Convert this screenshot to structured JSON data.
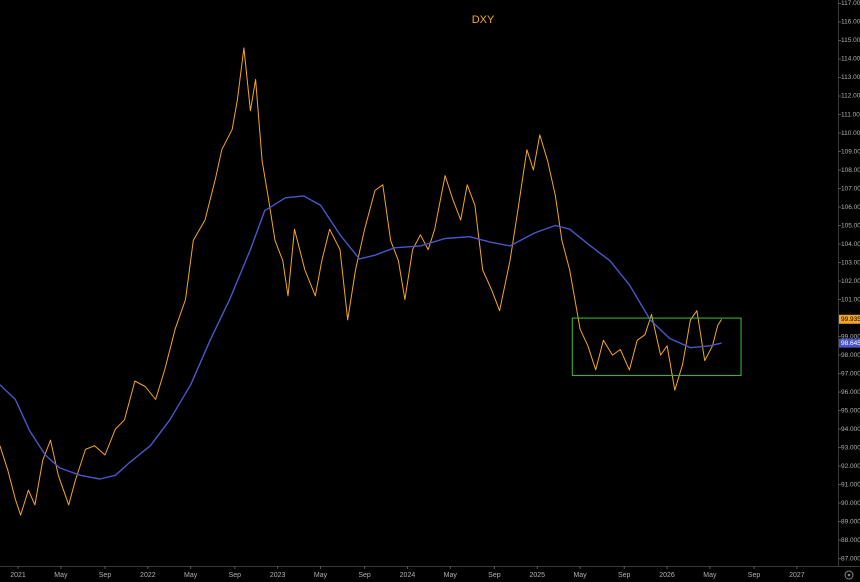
{
  "chart_data": {
    "type": "line",
    "title": "DXY",
    "xlim": [
      2020.861,
      2027.317
    ],
    "ylim": [
      86.6,
      117.19
    ],
    "xticks": [
      {
        "value": 2021,
        "label": "2021"
      },
      {
        "value": 2021.33,
        "label": "May"
      },
      {
        "value": 2021.67,
        "label": "Sep"
      },
      {
        "value": 2022,
        "label": "2022"
      },
      {
        "value": 2022.33,
        "label": "May"
      },
      {
        "value": 2022.67,
        "label": "Sep"
      },
      {
        "value": 2023,
        "label": "2023"
      },
      {
        "value": 2023.33,
        "label": "May"
      },
      {
        "value": 2023.67,
        "label": "Sep"
      },
      {
        "value": 2024,
        "label": "2024"
      },
      {
        "value": 2024.33,
        "label": "May"
      },
      {
        "value": 2024.67,
        "label": "Sep"
      },
      {
        "value": 2025,
        "label": "2025"
      },
      {
        "value": 2025.33,
        "label": "May"
      },
      {
        "value": 2025.67,
        "label": "Sep"
      },
      {
        "value": 2026,
        "label": "2026"
      },
      {
        "value": 2026.33,
        "label": "May"
      },
      {
        "value": 2026.67,
        "label": "Sep"
      },
      {
        "value": 2027,
        "label": "2027"
      }
    ],
    "yticks": [
      {
        "value": 87,
        "label": "87.000"
      },
      {
        "value": 88,
        "label": "88.000"
      },
      {
        "value": 89,
        "label": "89.000"
      },
      {
        "value": 90,
        "label": "90.000"
      },
      {
        "value": 91,
        "label": "91.000"
      },
      {
        "value": 92,
        "label": "92.000"
      },
      {
        "value": 93,
        "label": "93.000"
      },
      {
        "value": 94,
        "label": "94.000"
      },
      {
        "value": 95,
        "label": "95.000"
      },
      {
        "value": 96,
        "label": "96.000"
      },
      {
        "value": 97,
        "label": "97.000"
      },
      {
        "value": 98,
        "label": "98.000"
      },
      {
        "value": 99,
        "label": "99.000"
      },
      {
        "value": 101,
        "label": "101.000"
      },
      {
        "value": 102,
        "label": "102.000"
      },
      {
        "value": 103,
        "label": "103.000"
      },
      {
        "value": 104,
        "label": "104.000"
      },
      {
        "value": 105,
        "label": "105.000"
      },
      {
        "value": 106,
        "label": "106.000"
      },
      {
        "value": 107,
        "label": "107.000"
      },
      {
        "value": 108,
        "label": "108.000"
      },
      {
        "value": 109,
        "label": "109.000"
      },
      {
        "value": 110,
        "label": "110.000"
      },
      {
        "value": 111,
        "label": "111.000"
      },
      {
        "value": 112,
        "label": "112.000"
      },
      {
        "value": 113,
        "label": "113.000"
      },
      {
        "value": 114,
        "label": "114.000"
      },
      {
        "value": 115,
        "label": "115.000"
      },
      {
        "value": 116,
        "label": "116.000"
      },
      {
        "value": 117,
        "label": "117.000"
      }
    ],
    "series": [
      {
        "color": "#f5a623",
        "label_text_color": "#000000",
        "last_value_label": "99.935",
        "x": [
          2020.86,
          2020.92,
          2020.98,
          2021.02,
          2021.08,
          2021.13,
          2021.19,
          2021.25,
          2021.31,
          2021.39,
          2021.44,
          2021.52,
          2021.59,
          2021.67,
          2021.75,
          2021.82,
          2021.9,
          2021.98,
          2022.06,
          2022.13,
          2022.21,
          2022.29,
          2022.35,
          2022.44,
          2022.52,
          2022.57,
          2022.65,
          2022.69,
          2022.74,
          2022.79,
          2022.83,
          2022.88,
          2022.93,
          2022.98,
          2023.04,
          2023.08,
          2023.13,
          2023.21,
          2023.29,
          2023.34,
          2023.4,
          2023.48,
          2023.54,
          2023.6,
          2023.67,
          2023.75,
          2023.81,
          2023.87,
          2023.93,
          2023.98,
          2024.04,
          2024.1,
          2024.16,
          2024.21,
          2024.29,
          2024.35,
          2024.41,
          2024.46,
          2024.52,
          2024.58,
          2024.65,
          2024.71,
          2024.79,
          2024.85,
          2024.92,
          2024.97,
          2025.02,
          2025.08,
          2025.14,
          2025.19,
          2025.25,
          2025.29,
          2025.33,
          2025.39,
          2025.45,
          2025.51,
          2025.58,
          2025.64,
          2025.71,
          2025.77,
          2025.83,
          2025.88,
          2025.95,
          2026.0,
          2026.06,
          2026.12,
          2026.18,
          2026.23,
          2026.29,
          2026.35,
          2026.39,
          2026.42
        ],
        "values": [
          93.1,
          91.8,
          90.2,
          89.35,
          90.7,
          89.9,
          92.3,
          93.4,
          91.5,
          89.9,
          91.2,
          92.9,
          93.1,
          92.6,
          94.0,
          94.5,
          96.6,
          96.3,
          95.6,
          97.2,
          99.4,
          101.0,
          104.2,
          105.3,
          107.5,
          109.1,
          110.2,
          111.8,
          114.6,
          111.2,
          112.9,
          108.5,
          106.4,
          104.2,
          103.1,
          101.2,
          104.8,
          102.6,
          101.2,
          103.1,
          104.8,
          103.7,
          99.9,
          102.6,
          104.8,
          106.9,
          107.2,
          104.2,
          103.1,
          101.0,
          103.7,
          104.5,
          103.7,
          104.8,
          107.7,
          106.4,
          105.3,
          107.2,
          106.1,
          102.6,
          101.5,
          100.4,
          103.1,
          105.8,
          109.1,
          108.0,
          109.9,
          108.5,
          106.6,
          104.2,
          102.6,
          101.0,
          99.4,
          98.5,
          97.2,
          98.8,
          98.0,
          98.3,
          97.2,
          98.8,
          99.1,
          100.2,
          98.0,
          98.5,
          96.1,
          97.5,
          99.9,
          100.4,
          97.7,
          98.5,
          99.6,
          99.935
        ]
      },
      {
        "color": "#4a56c8",
        "label_text_color": "#ffffff",
        "last_value_label": "98.645",
        "x": [
          2020.86,
          2020.98,
          2021.09,
          2021.21,
          2021.32,
          2021.48,
          2021.63,
          2021.75,
          2021.86,
          2022.02,
          2022.17,
          2022.33,
          2022.48,
          2022.63,
          2022.79,
          2022.9,
          2023.06,
          2023.2,
          2023.33,
          2023.48,
          2023.63,
          2023.75,
          2023.9,
          2024.1,
          2024.29,
          2024.48,
          2024.64,
          2024.79,
          2024.98,
          2025.14,
          2025.25,
          2025.41,
          2025.56,
          2025.71,
          2025.87,
          2026.02,
          2026.18,
          2026.33,
          2026.42
        ],
        "values": [
          96.4,
          95.6,
          93.9,
          92.6,
          91.9,
          91.5,
          91.3,
          91.5,
          92.2,
          93.1,
          94.5,
          96.4,
          98.8,
          101.0,
          103.7,
          105.8,
          106.5,
          106.6,
          106.1,
          104.5,
          103.2,
          103.4,
          103.8,
          103.9,
          104.3,
          104.4,
          104.1,
          103.9,
          104.6,
          105.0,
          104.8,
          103.9,
          103.1,
          101.8,
          99.9,
          98.9,
          98.4,
          98.5,
          98.645
        ]
      }
    ],
    "range_box": {
      "x": [
        2025.27,
        2026.57
      ],
      "y": [
        96.9,
        100.0
      ],
      "color": "#3fbf3f"
    }
  }
}
